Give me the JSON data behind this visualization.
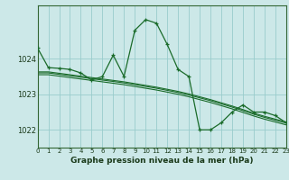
{
  "bg_color": "#cce8e8",
  "grid_color": "#99cccc",
  "line_color": "#1a6b2a",
  "title": "Graphe pression niveau de la mer (hPa)",
  "xlim": [
    0,
    23
  ],
  "ylim": [
    1021.5,
    1025.5
  ],
  "yticks": [
    1022,
    1023,
    1024
  ],
  "xticks": [
    0,
    1,
    2,
    3,
    4,
    5,
    6,
    7,
    8,
    9,
    10,
    11,
    12,
    13,
    14,
    15,
    16,
    17,
    18,
    19,
    20,
    21,
    22,
    23
  ],
  "main_series": [
    1024.3,
    1023.75,
    1023.73,
    1023.7,
    1023.6,
    1023.4,
    1023.5,
    1024.1,
    1023.5,
    1024.8,
    1025.1,
    1025.0,
    1024.4,
    1023.7,
    1023.5,
    1022.0,
    1022.0,
    1022.2,
    1022.5,
    1022.7,
    1022.5,
    1022.5,
    1022.4,
    1022.2
  ],
  "smooth1": [
    1023.63,
    1023.63,
    1023.59,
    1023.55,
    1023.51,
    1023.47,
    1023.43,
    1023.39,
    1023.35,
    1023.3,
    1023.25,
    1023.2,
    1023.14,
    1023.08,
    1023.01,
    1022.93,
    1022.85,
    1022.76,
    1022.67,
    1022.57,
    1022.47,
    1022.38,
    1022.3,
    1022.22
  ],
  "smooth2": [
    1023.6,
    1023.6,
    1023.56,
    1023.52,
    1023.48,
    1023.44,
    1023.4,
    1023.36,
    1023.32,
    1023.27,
    1023.22,
    1023.17,
    1023.11,
    1023.05,
    1022.98,
    1022.9,
    1022.82,
    1022.73,
    1022.64,
    1022.54,
    1022.44,
    1022.35,
    1022.27,
    1022.19
  ],
  "smooth3": [
    1023.55,
    1023.55,
    1023.51,
    1023.47,
    1023.43,
    1023.39,
    1023.35,
    1023.31,
    1023.27,
    1023.22,
    1023.17,
    1023.12,
    1023.06,
    1023.0,
    1022.93,
    1022.85,
    1022.77,
    1022.68,
    1022.59,
    1022.49,
    1022.39,
    1022.3,
    1022.22,
    1022.14
  ]
}
